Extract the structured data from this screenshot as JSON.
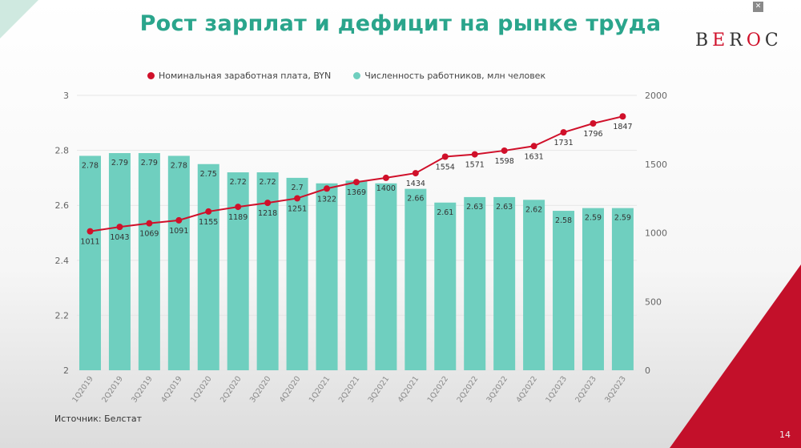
{
  "slide": {
    "title": "Рост зарплат и дефицит на рынке труда",
    "logo_text": "BEROC",
    "source": "Источник: Белстат",
    "page_number": "14",
    "accent_color": "#2aa58c",
    "brand_red": "#d0102a"
  },
  "chart_data": {
    "type": "bar+line",
    "categories": [
      "1Q2019",
      "2Q2019",
      "3Q2019",
      "4Q2019",
      "1Q2020",
      "2Q2020",
      "3Q2020",
      "4Q2020",
      "1Q2021",
      "2Q2021",
      "3Q2021",
      "4Q2021",
      "1Q2022",
      "2Q2022",
      "3Q2022",
      "4Q2022",
      "1Q2023",
      "2Q2023",
      "3Q2023"
    ],
    "series": [
      {
        "name": "Численность работников, млн человек",
        "type": "bar",
        "axis": "left",
        "color": "#6fcfbf",
        "values": [
          2.78,
          2.79,
          2.79,
          2.78,
          2.75,
          2.72,
          2.72,
          2.7,
          2.68,
          2.69,
          2.68,
          2.66,
          2.61,
          2.63,
          2.63,
          2.62,
          2.58,
          2.59,
          2.59
        ],
        "labels": [
          "2.78",
          "2.79",
          "2.79",
          "2.78",
          "2.75",
          "2.72",
          "2.72",
          "2.7",
          "",
          "",
          "",
          "2.66",
          "2.61",
          "2.63",
          "2.63",
          "2.62",
          "2.58",
          "2.59",
          "2.59"
        ]
      },
      {
        "name": "Номинальная заработная плата, BYN",
        "type": "line",
        "axis": "right",
        "color": "#d0102a",
        "values": [
          1011,
          1043,
          1069,
          1091,
          1155,
          1189,
          1218,
          1251,
          1322,
          1369,
          1400,
          1434,
          1554,
          1571,
          1598,
          1631,
          1731,
          1796,
          1847
        ]
      }
    ],
    "y_left": {
      "range": [
        2,
        3
      ],
      "ticks": [
        "2",
        "2.2",
        "2.4",
        "2.6",
        "2.8",
        "3"
      ]
    },
    "y_right": {
      "range": [
        0,
        2000
      ],
      "ticks": [
        "0",
        "500",
        "1000",
        "1500",
        "2000"
      ]
    },
    "legend_placement": "top",
    "grid": true
  }
}
